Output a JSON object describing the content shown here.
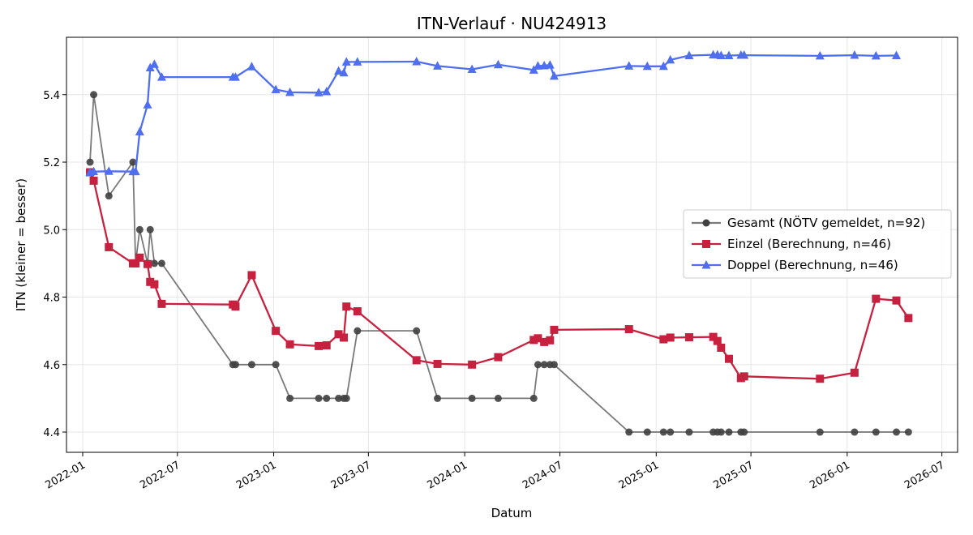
{
  "chart_data": {
    "type": "line",
    "title": "ITN-Verlauf · NU424913",
    "xlabel": "Datum",
    "ylabel": "ITN  (kleiner = besser)",
    "xlim": [
      "2021-12-01",
      "2026-07-31"
    ],
    "ylim": [
      4.34,
      5.57
    ],
    "grid": true,
    "legend_position": "center-right",
    "x_ticks": [
      {
        "date": "2022-01-01",
        "label": "2022-01"
      },
      {
        "date": "2022-07-01",
        "label": "2022-07"
      },
      {
        "date": "2023-01-01",
        "label": "2023-01"
      },
      {
        "date": "2023-07-01",
        "label": "2023-07"
      },
      {
        "date": "2024-01-01",
        "label": "2024-01"
      },
      {
        "date": "2024-07-01",
        "label": "2024-07"
      },
      {
        "date": "2025-01-01",
        "label": "2025-01"
      },
      {
        "date": "2025-07-01",
        "label": "2025-07"
      },
      {
        "date": "2026-01-01",
        "label": "2026-01"
      },
      {
        "date": "2026-07-01",
        "label": "2026-07"
      }
    ],
    "y_ticks": [
      {
        "value": 4.4,
        "label": "4.4"
      },
      {
        "value": 4.6,
        "label": "4.6"
      },
      {
        "value": 4.8,
        "label": "4.8"
      },
      {
        "value": 5.0,
        "label": "5.0"
      },
      {
        "value": 5.2,
        "label": "5.2"
      },
      {
        "value": 5.4,
        "label": "5.4"
      }
    ],
    "series": [
      {
        "name": "Gesamt (NÖTV gemeldet, n=92)",
        "color": "#404040",
        "marker": "circle",
        "points": [
          [
            "2022-01-15",
            5.2
          ],
          [
            "2022-01-22",
            5.4
          ],
          [
            "2022-02-20",
            5.1
          ],
          [
            "2022-04-07",
            5.2
          ],
          [
            "2022-04-12",
            4.9
          ],
          [
            "2022-04-20",
            5.0
          ],
          [
            "2022-05-05",
            4.9
          ],
          [
            "2022-05-10",
            5.0
          ],
          [
            "2022-05-18",
            4.9
          ],
          [
            "2022-06-01",
            4.9
          ],
          [
            "2022-10-15",
            4.6
          ],
          [
            "2022-10-20",
            4.6
          ],
          [
            "2022-11-20",
            4.6
          ],
          [
            "2023-01-05",
            4.6
          ],
          [
            "2023-02-01",
            4.5
          ],
          [
            "2023-03-28",
            4.5
          ],
          [
            "2023-04-12",
            4.5
          ],
          [
            "2023-05-05",
            4.5
          ],
          [
            "2023-05-15",
            4.5
          ],
          [
            "2023-05-20",
            4.5
          ],
          [
            "2023-06-10",
            4.7
          ],
          [
            "2023-10-01",
            4.7
          ],
          [
            "2023-11-10",
            4.5
          ],
          [
            "2024-01-15",
            4.5
          ],
          [
            "2024-03-05",
            4.5
          ],
          [
            "2024-05-12",
            4.5
          ],
          [
            "2024-05-20",
            4.6
          ],
          [
            "2024-06-01",
            4.6
          ],
          [
            "2024-06-12",
            4.6
          ],
          [
            "2024-06-20",
            4.6
          ],
          [
            "2024-11-10",
            4.4
          ],
          [
            "2024-12-15",
            4.4
          ],
          [
            "2025-01-15",
            4.4
          ],
          [
            "2025-01-28",
            4.4
          ],
          [
            "2025-03-05",
            4.4
          ],
          [
            "2025-04-20",
            4.4
          ],
          [
            "2025-04-28",
            4.4
          ],
          [
            "2025-05-05",
            4.4
          ],
          [
            "2025-05-20",
            4.4
          ],
          [
            "2025-06-12",
            4.4
          ],
          [
            "2025-06-18",
            4.4
          ],
          [
            "2025-11-10",
            4.4
          ],
          [
            "2026-01-15",
            4.4
          ],
          [
            "2026-02-25",
            4.4
          ],
          [
            "2026-04-05",
            4.4
          ],
          [
            "2026-04-28",
            4.4
          ]
        ]
      },
      {
        "name": "Einzel (Berechnung, n=46)",
        "color": "#c8203f",
        "marker": "square",
        "points": [
          [
            "2022-01-15",
            5.17
          ],
          [
            "2022-01-22",
            5.145
          ],
          [
            "2022-02-20",
            4.948
          ],
          [
            "2022-04-07",
            4.9
          ],
          [
            "2022-04-12",
            4.9
          ],
          [
            "2022-04-20",
            4.917
          ],
          [
            "2022-05-05",
            4.898
          ],
          [
            "2022-05-10",
            4.845
          ],
          [
            "2022-05-18",
            4.838
          ],
          [
            "2022-06-01",
            4.78
          ],
          [
            "2022-10-15",
            4.778
          ],
          [
            "2022-10-20",
            4.772
          ],
          [
            "2022-11-20",
            4.865
          ],
          [
            "2023-01-05",
            4.7
          ],
          [
            "2023-02-01",
            4.66
          ],
          [
            "2023-03-28",
            4.655
          ],
          [
            "2023-04-12",
            4.657
          ],
          [
            "2023-05-05",
            4.69
          ],
          [
            "2023-05-15",
            4.68
          ],
          [
            "2023-05-20",
            4.772
          ],
          [
            "2023-06-10",
            4.758
          ],
          [
            "2023-10-01",
            4.613
          ],
          [
            "2023-11-10",
            4.602
          ],
          [
            "2024-01-15",
            4.6
          ],
          [
            "2024-03-05",
            4.622
          ],
          [
            "2024-05-12",
            4.673
          ],
          [
            "2024-05-20",
            4.678
          ],
          [
            "2024-06-01",
            4.667
          ],
          [
            "2024-06-12",
            4.672
          ],
          [
            "2024-06-20",
            4.703
          ],
          [
            "2024-11-10",
            4.705
          ],
          [
            "2025-01-15",
            4.675
          ],
          [
            "2025-01-28",
            4.68
          ],
          [
            "2025-03-05",
            4.681
          ],
          [
            "2025-04-20",
            4.682
          ],
          [
            "2025-04-28",
            4.67
          ],
          [
            "2025-05-05",
            4.65
          ],
          [
            "2025-05-20",
            4.617
          ],
          [
            "2025-06-12",
            4.56
          ],
          [
            "2025-06-18",
            4.565
          ],
          [
            "2025-11-10",
            4.558
          ],
          [
            "2026-01-15",
            4.576
          ],
          [
            "2026-02-25",
            4.795
          ],
          [
            "2026-04-05",
            4.79
          ],
          [
            "2026-04-28",
            4.738
          ]
        ]
      },
      {
        "name": "Doppel (Berechnung, n=46)",
        "color": "#4f6ef0",
        "marker": "triangle",
        "points": [
          [
            "2022-01-15",
            5.17
          ],
          [
            "2022-01-22",
            5.172
          ],
          [
            "2022-02-20",
            5.173
          ],
          [
            "2022-04-07",
            5.172
          ],
          [
            "2022-04-12",
            5.172
          ],
          [
            "2022-04-20",
            5.29
          ],
          [
            "2022-05-05",
            5.37
          ],
          [
            "2022-05-10",
            5.48
          ],
          [
            "2022-05-18",
            5.49
          ],
          [
            "2022-06-01",
            5.452
          ],
          [
            "2022-10-15",
            5.452
          ],
          [
            "2022-10-20",
            5.452
          ],
          [
            "2022-11-20",
            5.483
          ],
          [
            "2023-01-05",
            5.415
          ],
          [
            "2023-02-01",
            5.407
          ],
          [
            "2023-03-28",
            5.406
          ],
          [
            "2023-04-12",
            5.409
          ],
          [
            "2023-05-05",
            5.47
          ],
          [
            "2023-05-15",
            5.465
          ],
          [
            "2023-05-20",
            5.497
          ],
          [
            "2023-06-10",
            5.497
          ],
          [
            "2023-10-01",
            5.498
          ],
          [
            "2023-11-10",
            5.485
          ],
          [
            "2024-01-15",
            5.475
          ],
          [
            "2024-03-05",
            5.489
          ],
          [
            "2024-05-12",
            5.473
          ],
          [
            "2024-05-20",
            5.485
          ],
          [
            "2024-06-01",
            5.486
          ],
          [
            "2024-06-12",
            5.488
          ],
          [
            "2024-06-20",
            5.455
          ],
          [
            "2024-11-10",
            5.485
          ],
          [
            "2024-12-15",
            5.484
          ],
          [
            "2025-01-15",
            5.484
          ],
          [
            "2025-01-28",
            5.503
          ],
          [
            "2025-03-05",
            5.516
          ],
          [
            "2025-04-20",
            5.518
          ],
          [
            "2025-04-28",
            5.518
          ],
          [
            "2025-05-05",
            5.516
          ],
          [
            "2025-05-20",
            5.516
          ],
          [
            "2025-06-12",
            5.517
          ],
          [
            "2025-06-18",
            5.517
          ],
          [
            "2025-11-10",
            5.515
          ],
          [
            "2026-01-15",
            5.517
          ],
          [
            "2026-02-25",
            5.515
          ],
          [
            "2026-04-05",
            5.516
          ]
        ]
      }
    ]
  }
}
